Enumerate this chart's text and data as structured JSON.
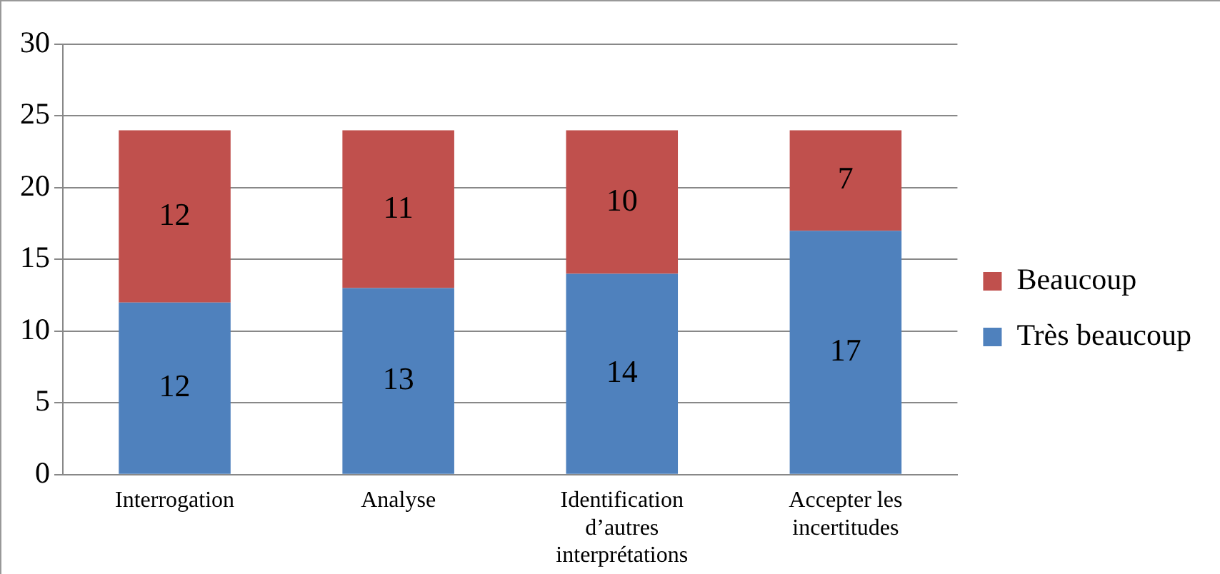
{
  "chart_data": {
    "type": "bar",
    "stacked": true,
    "categories": [
      "Interrogation",
      "Analyse",
      "Identification d’autres interprétations",
      "Accepter les incertitudes"
    ],
    "series": [
      {
        "name": "Très beaucoup",
        "color": "#4f81bd",
        "values": [
          12,
          13,
          14,
          17
        ]
      },
      {
        "name": "Beaucoup",
        "color": "#c0504d",
        "values": [
          12,
          11,
          10,
          7
        ]
      }
    ],
    "ylim": [
      0,
      30
    ],
    "yticks": [
      0,
      5,
      10,
      15,
      20,
      25,
      30
    ],
    "grid": "y",
    "legend": "right",
    "data_labels": true
  }
}
